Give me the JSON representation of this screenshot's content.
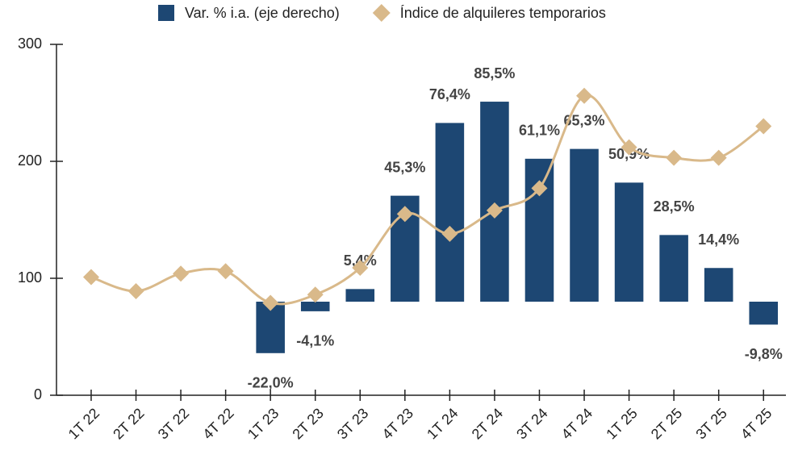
{
  "chart_data": {
    "type": "bar-line",
    "categories": [
      "1T 22",
      "2T 22",
      "3T 22",
      "4T 22",
      "1T 23",
      "2T 23",
      "3T 23",
      "4T 23",
      "1T 24",
      "2T 24",
      "3T 24",
      "4T 24",
      "1T 25",
      "2T 25",
      "3T 25",
      "4T 25"
    ],
    "series": [
      {
        "name": "Var. % i.a. (eje derecho)",
        "type": "bar",
        "axis": "y2",
        "color": "#1d4773",
        "values": [
          null,
          null,
          null,
          null,
          -22.0,
          -4.1,
          5.4,
          45.3,
          76.4,
          85.5,
          61.1,
          65.3,
          50.9,
          28.5,
          14.4,
          -9.8
        ],
        "value_labels": [
          null,
          null,
          null,
          null,
          "-22,0%",
          "-4,1%",
          "5,4%",
          "45,3%",
          "76,4%",
          "85,5%",
          "61,1%",
          "65,3%",
          "50,9%",
          "28,5%",
          "14,4%",
          "-9,8%"
        ]
      },
      {
        "name": "Índice de alquileres temporarios",
        "type": "line",
        "color": "#d9b98a",
        "values": [
          101,
          89,
          104,
          106,
          79,
          86,
          109,
          155,
          138,
          158,
          177,
          256,
          212,
          203,
          203,
          230
        ]
      }
    ],
    "ylim": [
      0,
      300
    ],
    "yticks": [
      0,
      100,
      200,
      300
    ],
    "y2lim": [
      -40,
      110
    ],
    "grid": false
  }
}
